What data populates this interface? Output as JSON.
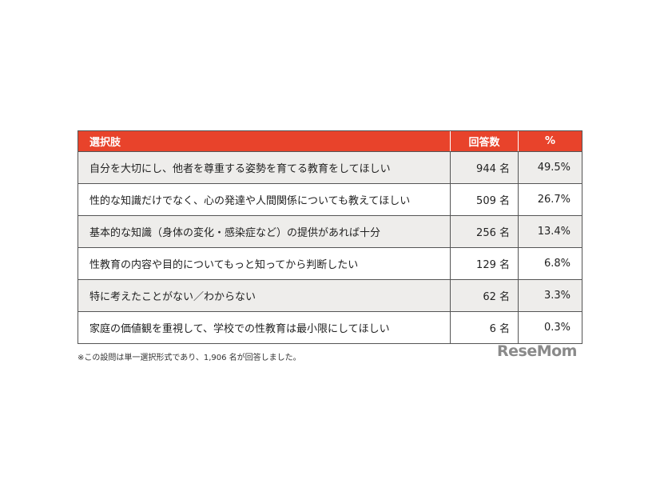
{
  "table": {
    "header": [
      "選択肢",
      "回答数",
      "%"
    ],
    "rows": [
      [
        "自分を大切にし、他者を尊重する姿勢を育てる教育をしてほしい",
        "944 名",
        "49.5%"
      ],
      [
        "性的な知識だけでなく、心の発達や人間関係についても教えてほしい",
        "509 名",
        "26.7%"
      ],
      [
        "基本的な知識（身体の変化・感染症など）の提供があれば十分",
        "256 名",
        "13.4%"
      ],
      [
        "性教育の内容や目的についてもっと知ってから判断したい",
        "129 名",
        "6.8%"
      ],
      [
        "特に考えたことがない／わからない",
        "62 名",
        "3.3%"
      ],
      [
        "家庭の価値観を重視して、学校での性教育は最小限にしてほしい",
        "6 名",
        "0.3%"
      ]
    ]
  },
  "footnote": "※この設問は単一選択形式であり、1,906 名が回答しました。",
  "logo": "ReseMom"
}
